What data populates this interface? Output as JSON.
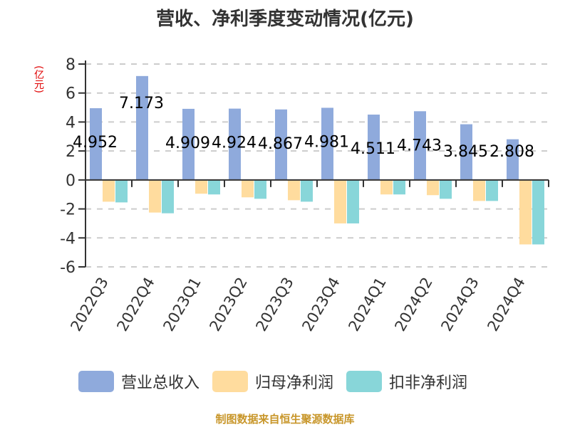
{
  "title": "营收、净利季度变动情况(亿元)",
  "unit_label": "(亿元)",
  "legend": [
    {
      "label": "营业总收入",
      "color": "#8faadc"
    },
    {
      "label": "归母净利润",
      "color": "#ffdc9e"
    },
    {
      "label": "扣非净利润",
      "color": "#88d6d9"
    }
  ],
  "footer": "制图数据来自恒生聚源数据库",
  "chart_data": {
    "type": "bar",
    "title": "营收、净利季度变动情况(亿元)",
    "xlabel": "",
    "ylabel": "(亿元)",
    "ylim": [
      -6,
      8
    ],
    "yticks": [
      8,
      6,
      4,
      2,
      0,
      -2,
      -4,
      -6
    ],
    "grid": true,
    "legend_position": "bottom",
    "categories": [
      "2022Q3",
      "2022Q4",
      "2023Q1",
      "2023Q2",
      "2023Q3",
      "2023Q4",
      "2024Q1",
      "2024Q2",
      "2024Q3",
      "2024Q4"
    ],
    "series": [
      {
        "name": "营业总收入",
        "color": "#8faadc",
        "values": [
          4.952,
          7.173,
          4.909,
          4.924,
          4.867,
          4.981,
          4.511,
          4.743,
          3.845,
          2.808
        ]
      },
      {
        "name": "归母净利润",
        "color": "#ffdc9e",
        "values": [
          -1.5,
          -2.25,
          -0.95,
          -1.2,
          -1.4,
          -3.0,
          -1.0,
          -1.05,
          -1.45,
          -4.45
        ]
      },
      {
        "name": "扣非净利润",
        "color": "#88d6d9",
        "values": [
          -1.55,
          -2.3,
          -1.0,
          -1.3,
          -1.5,
          -3.0,
          -1.0,
          -1.3,
          -1.45,
          -4.45
        ]
      }
    ],
    "data_labels": [
      "4.952",
      "7.173",
      "4.909",
      "4.924",
      "4.867",
      "4.981",
      "4.511",
      "4.743",
      "3.845",
      "2.808"
    ]
  }
}
